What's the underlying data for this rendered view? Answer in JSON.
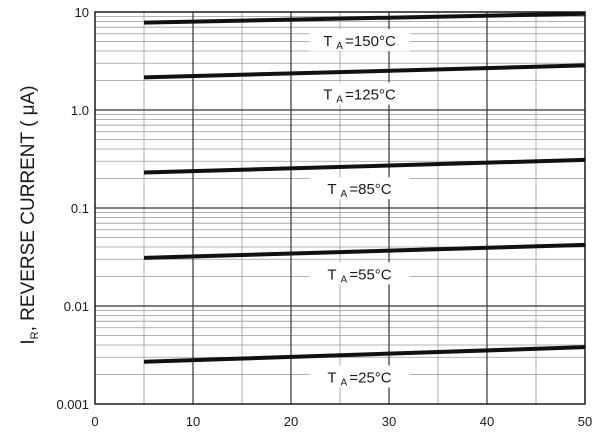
{
  "chart_data": {
    "type": "line",
    "title": "",
    "xlabel": "",
    "ylabel": {
      "prefix": "I",
      "subscript": "R",
      "text": ", REVERSE CURRENT ( μA)"
    },
    "yscale": "log",
    "xlim": [
      0,
      50
    ],
    "ylim": [
      0.001,
      10
    ],
    "grid": true,
    "legend": "none",
    "x_ticks": [
      "0",
      "10",
      "20",
      "30",
      "40",
      "50"
    ],
    "y_ticks": [
      "0.001",
      "0.01",
      "0.1",
      "1.0",
      "10"
    ],
    "series": [
      {
        "label_main": "T",
        "label_sub": "A",
        "label_rest": "=150°C",
        "x": [
          5,
          50
        ],
        "y": [
          7.8,
          9.6
        ]
      },
      {
        "label_main": "T",
        "label_sub": "A",
        "label_rest": "=125°C",
        "x": [
          5,
          50
        ],
        "y": [
          2.15,
          2.85
        ]
      },
      {
        "label_main": "T",
        "label_sub": "A",
        "label_rest": "=85°C",
        "x": [
          5,
          50
        ],
        "y": [
          0.23,
          0.31
        ]
      },
      {
        "label_main": "T",
        "label_sub": "A",
        "label_rest": "=55°C",
        "x": [
          5,
          50
        ],
        "y": [
          0.031,
          0.042
        ]
      },
      {
        "label_main": "T",
        "label_sub": "A",
        "label_rest": "=25°C",
        "x": [
          5,
          50
        ],
        "y": [
          0.0027,
          0.0038
        ]
      }
    ]
  }
}
